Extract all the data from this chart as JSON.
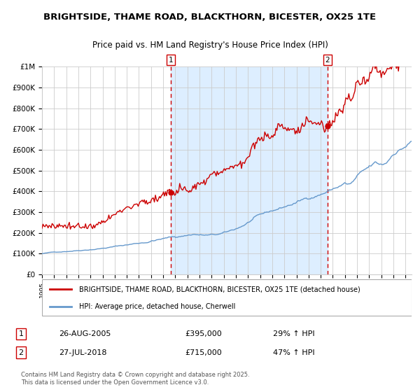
{
  "title": "BRIGHTSIDE, THAME ROAD, BLACKTHORN, BICESTER, OX25 1TE",
  "subtitle": "Price paid vs. HM Land Registry's House Price Index (HPI)",
  "red_label": "BRIGHTSIDE, THAME ROAD, BLACKTHORN, BICESTER, OX25 1TE (detached house)",
  "blue_label": "HPI: Average price, detached house, Cherwell",
  "transaction1_date": "26-AUG-2005",
  "transaction1_price": 395000,
  "transaction1_hpi": "29% ↑ HPI",
  "transaction2_date": "27-JUL-2018",
  "transaction2_price": 715000,
  "transaction2_hpi": "47% ↑ HPI",
  "footer": "Contains HM Land Registry data © Crown copyright and database right 2025.\nThis data is licensed under the Open Government Licence v3.0.",
  "red_color": "#cc0000",
  "blue_color": "#6699cc",
  "bg_color": "#ffffff",
  "shaded_region_color": "#ddeeff",
  "grid_color": "#cccccc",
  "vline_color": "#cc0000",
  "ylim": [
    0,
    1000000
  ],
  "year_start": 1995,
  "year_end": 2025,
  "t1_year": 2005.65,
  "t2_year": 2018.56
}
